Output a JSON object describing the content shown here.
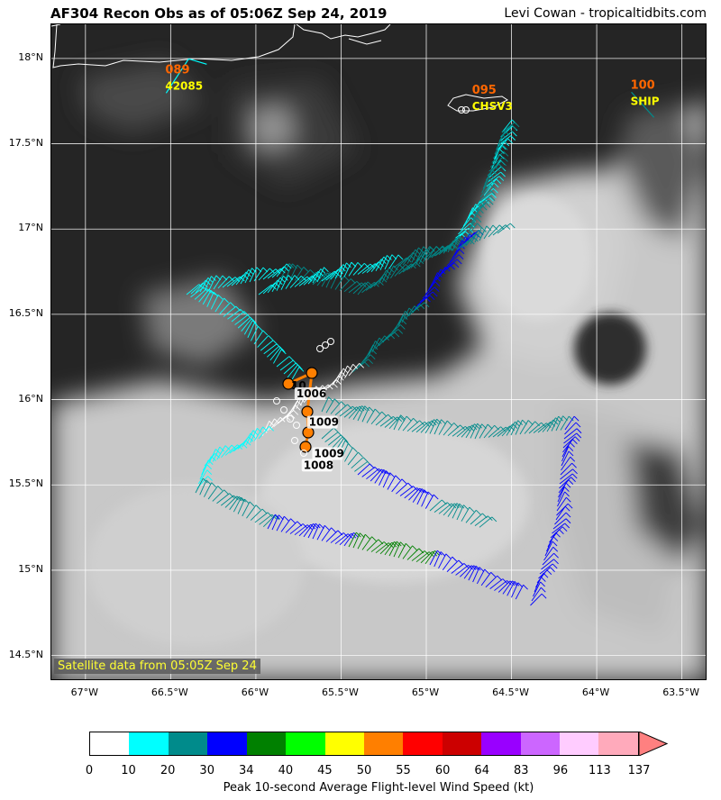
{
  "header": {
    "title": "AF304 Recon Obs as of 05:06Z Sep 24, 2019",
    "credit": "Levi Cowan - tropicaltidbits.com"
  },
  "map": {
    "lon_range": [
      -67.2,
      -63.35
    ],
    "lat_range": [
      14.35,
      18.2
    ],
    "lat_labels": [
      "18°N",
      "17.5°N",
      "17°N",
      "16.5°N",
      "16°N",
      "15.5°N",
      "15°N",
      "14.5°N"
    ],
    "lat_values": [
      18.0,
      17.5,
      17.0,
      16.5,
      16.0,
      15.5,
      15.0,
      14.5
    ],
    "lon_labels": [
      "67°W",
      "66.5°W",
      "66°W",
      "65.5°W",
      "65°W",
      "64.5°W",
      "64°W",
      "63.5°W"
    ],
    "lon_values": [
      -67.0,
      -66.5,
      -66.0,
      -65.5,
      -65.0,
      -64.5,
      -64.0,
      -63.5
    ],
    "satellite_note": "Satellite data from 05:05Z Sep 24",
    "stations": [
      {
        "id": "42085",
        "value": "089",
        "lon": -66.5,
        "lat": 17.85
      },
      {
        "id": "CHSV3",
        "value": "095",
        "lon": -64.7,
        "lat": 17.73
      },
      {
        "id": "SHIP",
        "value": "100",
        "lon": -63.77,
        "lat": 17.76
      }
    ],
    "pressure_obs": [
      {
        "value": "1006",
        "lon": -65.72,
        "lat": 16.13
      },
      {
        "value": "1009",
        "lon": -65.7,
        "lat": 15.91
      },
      {
        "value": "1009",
        "lon": -65.68,
        "lat": 15.8
      },
      {
        "value": "1008",
        "lon": -65.71,
        "lat": 15.7
      }
    ],
    "partial_label": "10",
    "colors": {
      "track_orange": "#ff7f00",
      "station_value": "#ff6600",
      "station_id": "#ffff00"
    }
  },
  "colorbar": {
    "title": "Peak 10-second Average Flight-level Wind Speed (kt)",
    "ticks": [
      "0",
      "10",
      "20",
      "30",
      "34",
      "40",
      "45",
      "50",
      "55",
      "60",
      "64",
      "83",
      "96",
      "113",
      "137"
    ],
    "colors": [
      "#ffffff",
      "#00ffff",
      "#008b8b",
      "#0000ff",
      "#008000",
      "#00ff00",
      "#ffff00",
      "#ff7f00",
      "#ff0000",
      "#cc0000",
      "#9900ff",
      "#cc66ff",
      "#ffccff",
      "#ffaabb"
    ],
    "extend_color": "#ff8080"
  }
}
